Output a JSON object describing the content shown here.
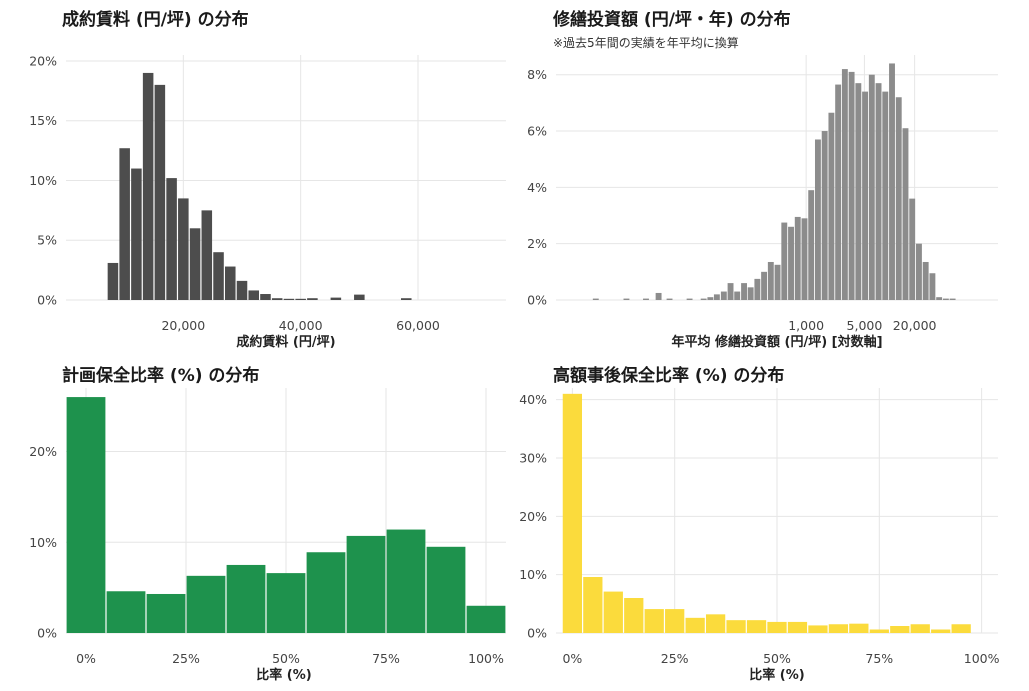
{
  "chart_data": [
    {
      "type": "bar",
      "title": "成約賃料 (円/坪) の分布",
      "xlabel": "成約賃料 (円/坪)",
      "ylabel": "",
      "bar_color": "#4d4d4d",
      "x_ticks": [
        20000,
        40000,
        60000
      ],
      "x_tick_labels": [
        "20,000",
        "40,000",
        "60,000"
      ],
      "y_ticks": [
        0,
        5,
        10,
        15,
        20
      ],
      "y_tick_labels": [
        "0%",
        "5%",
        "10%",
        "15%",
        "20%"
      ],
      "xlim": [
        0,
        75000
      ],
      "ylim": [
        0,
        20.5
      ],
      "bin_width": 2000,
      "x": [
        8000,
        10000,
        12000,
        14000,
        16000,
        18000,
        20000,
        22000,
        24000,
        26000,
        28000,
        30000,
        32000,
        34000,
        36000,
        38000,
        40000,
        42000,
        46000,
        50000,
        58000
      ],
      "values": [
        3.1,
        12.7,
        11.0,
        19.0,
        18.0,
        10.2,
        8.5,
        6.0,
        7.5,
        4.0,
        2.8,
        1.6,
        0.8,
        0.5,
        0.15,
        0.1,
        0.1,
        0.15,
        0.2,
        0.45,
        0.15
      ],
      "grid": true
    },
    {
      "type": "bar",
      "title": "修繕投資額 (円/坪・年) の分布",
      "subtitle": "※過去5年間の実績を年平均に換算",
      "xlabel": "年平均 修繕投資額 (円/坪) [対数軸]",
      "ylabel": "",
      "x_scale": "log",
      "bar_color": "#8c8c8c",
      "x_ticks": [
        1000,
        5000,
        20000
      ],
      "x_tick_labels": [
        "1,000",
        "5,000",
        "20,000"
      ],
      "y_ticks": [
        0,
        2,
        4,
        6,
        8
      ],
      "y_tick_labels": [
        "0%",
        "2%",
        "4%",
        "6%",
        "8%"
      ],
      "xlim": [
        1,
        200000
      ],
      "ylim": [
        0,
        8.7
      ],
      "log10_bin_width": 0.085,
      "x": [
        3,
        7,
        12,
        17,
        23,
        40,
        59,
        71,
        85,
        103,
        124,
        149,
        180,
        216,
        260,
        313,
        377,
        454,
        547,
        659,
        793,
        955,
        1150,
        1385,
        1668,
        2009,
        2420,
        2914,
        3510,
        4227,
        5091,
        6131,
        7385,
        8894,
        10711,
        12900,
        15537,
        18712,
        22536,
        27142,
        32689,
        39369,
        47415,
        57105
      ],
      "values": [
        0.05,
        0.05,
        0.05,
        0.25,
        0.05,
        0.05,
        0.05,
        0.1,
        0.2,
        0.3,
        0.6,
        0.3,
        0.6,
        0.45,
        0.75,
        1.0,
        1.35,
        1.25,
        2.75,
        2.6,
        2.95,
        2.9,
        3.9,
        5.7,
        6.0,
        6.65,
        7.65,
        8.2,
        8.1,
        7.7,
        7.4,
        8.0,
        7.7,
        7.4,
        8.4,
        7.2,
        6.1,
        3.6,
        2.0,
        1.35,
        0.95,
        0.1,
        0.05,
        0.05
      ],
      "grid": true
    },
    {
      "type": "bar",
      "title": "計画保全比率 (%) の分布",
      "xlabel": "比率 (%)",
      "ylabel": "",
      "bar_color": "#1e924d",
      "x_ticks": [
        0,
        25,
        50,
        75,
        100
      ],
      "x_tick_labels": [
        "0%",
        "25%",
        "50%",
        "75%",
        "100%"
      ],
      "y_ticks": [
        0,
        10,
        20
      ],
      "y_tick_labels": [
        "0%",
        "10%",
        "20%"
      ],
      "xlim": [
        -5,
        105
      ],
      "ylim": [
        0,
        27
      ],
      "bin_width": 10,
      "x": [
        0,
        10,
        20,
        30,
        40,
        50,
        60,
        70,
        80,
        90,
        100
      ],
      "values": [
        26.0,
        4.6,
        4.3,
        6.3,
        7.5,
        6.6,
        8.9,
        10.7,
        11.4,
        9.5,
        3.0
      ],
      "grid": true
    },
    {
      "type": "bar",
      "title": "高額事後保全比率 (%) の分布",
      "xlabel": "比率 (%)",
      "ylabel": "",
      "bar_color": "#fbdb3c",
      "x_ticks": [
        0,
        25,
        50,
        75,
        100
      ],
      "x_tick_labels": [
        "0%",
        "25%",
        "50%",
        "75%",
        "100%"
      ],
      "y_ticks": [
        0,
        10,
        20,
        30,
        40
      ],
      "y_tick_labels": [
        "0%",
        "10%",
        "20%",
        "30%",
        "40%"
      ],
      "xlim": [
        -4,
        104
      ],
      "ylim": [
        0,
        42
      ],
      "bin_width": 5,
      "x": [
        0,
        5,
        10,
        15,
        20,
        25,
        30,
        35,
        40,
        45,
        50,
        55,
        60,
        65,
        70,
        75,
        80,
        85,
        90,
        95
      ],
      "values": [
        41.0,
        9.6,
        7.1,
        6.0,
        4.1,
        4.1,
        2.6,
        3.2,
        2.2,
        2.2,
        1.9,
        1.9,
        1.3,
        1.5,
        1.6,
        0.6,
        1.2,
        1.5,
        0.6,
        1.5
      ],
      "grid": true
    }
  ]
}
